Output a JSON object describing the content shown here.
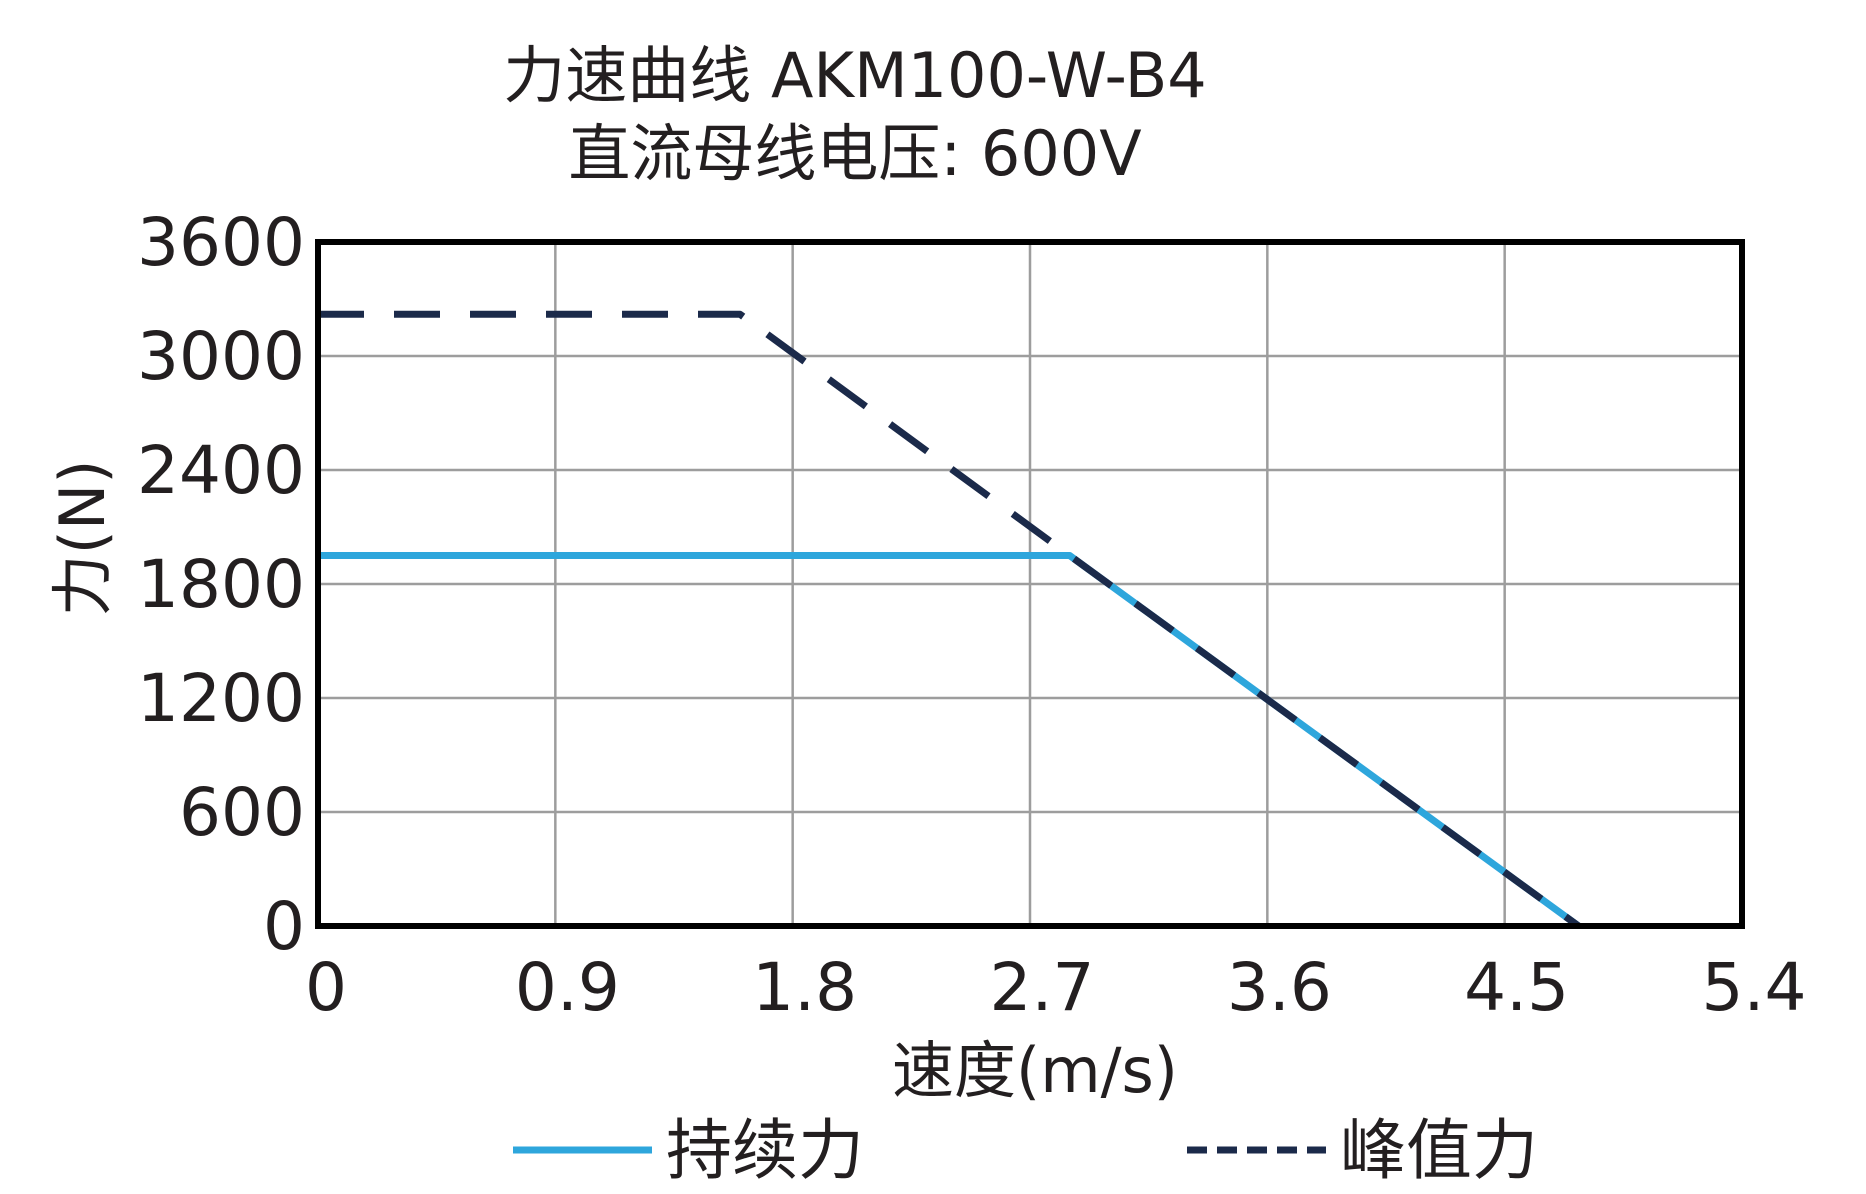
{
  "chart_data": {
    "type": "line",
    "title": "力速曲线 AKM100-W-B4",
    "subtitle": "直流母线电压: 600V",
    "xlabel": "速度(m/s)",
    "ylabel": "力(N)",
    "xlim": [
      0,
      5.4
    ],
    "ylim": [
      0,
      3600
    ],
    "x_ticks": [
      "0",
      "0.9",
      "1.8",
      "2.7",
      "3.6",
      "4.5",
      "5.4"
    ],
    "y_ticks": [
      "0",
      "600",
      "1200",
      "1800",
      "2400",
      "3000",
      "3600"
    ],
    "grid": true,
    "legend_position": "bottom",
    "series": [
      {
        "name": "持续力",
        "style": "solid",
        "color": "#2ea6dc",
        "x": [
          0,
          2.85,
          4.78
        ],
        "y": [
          1950,
          1950,
          0
        ]
      },
      {
        "name": "峰值力",
        "style": "dashed",
        "color": "#1b2a4a",
        "x": [
          0,
          1.6,
          2.85,
          4.78
        ],
        "y": [
          3220,
          3220,
          1950,
          0
        ]
      }
    ]
  }
}
